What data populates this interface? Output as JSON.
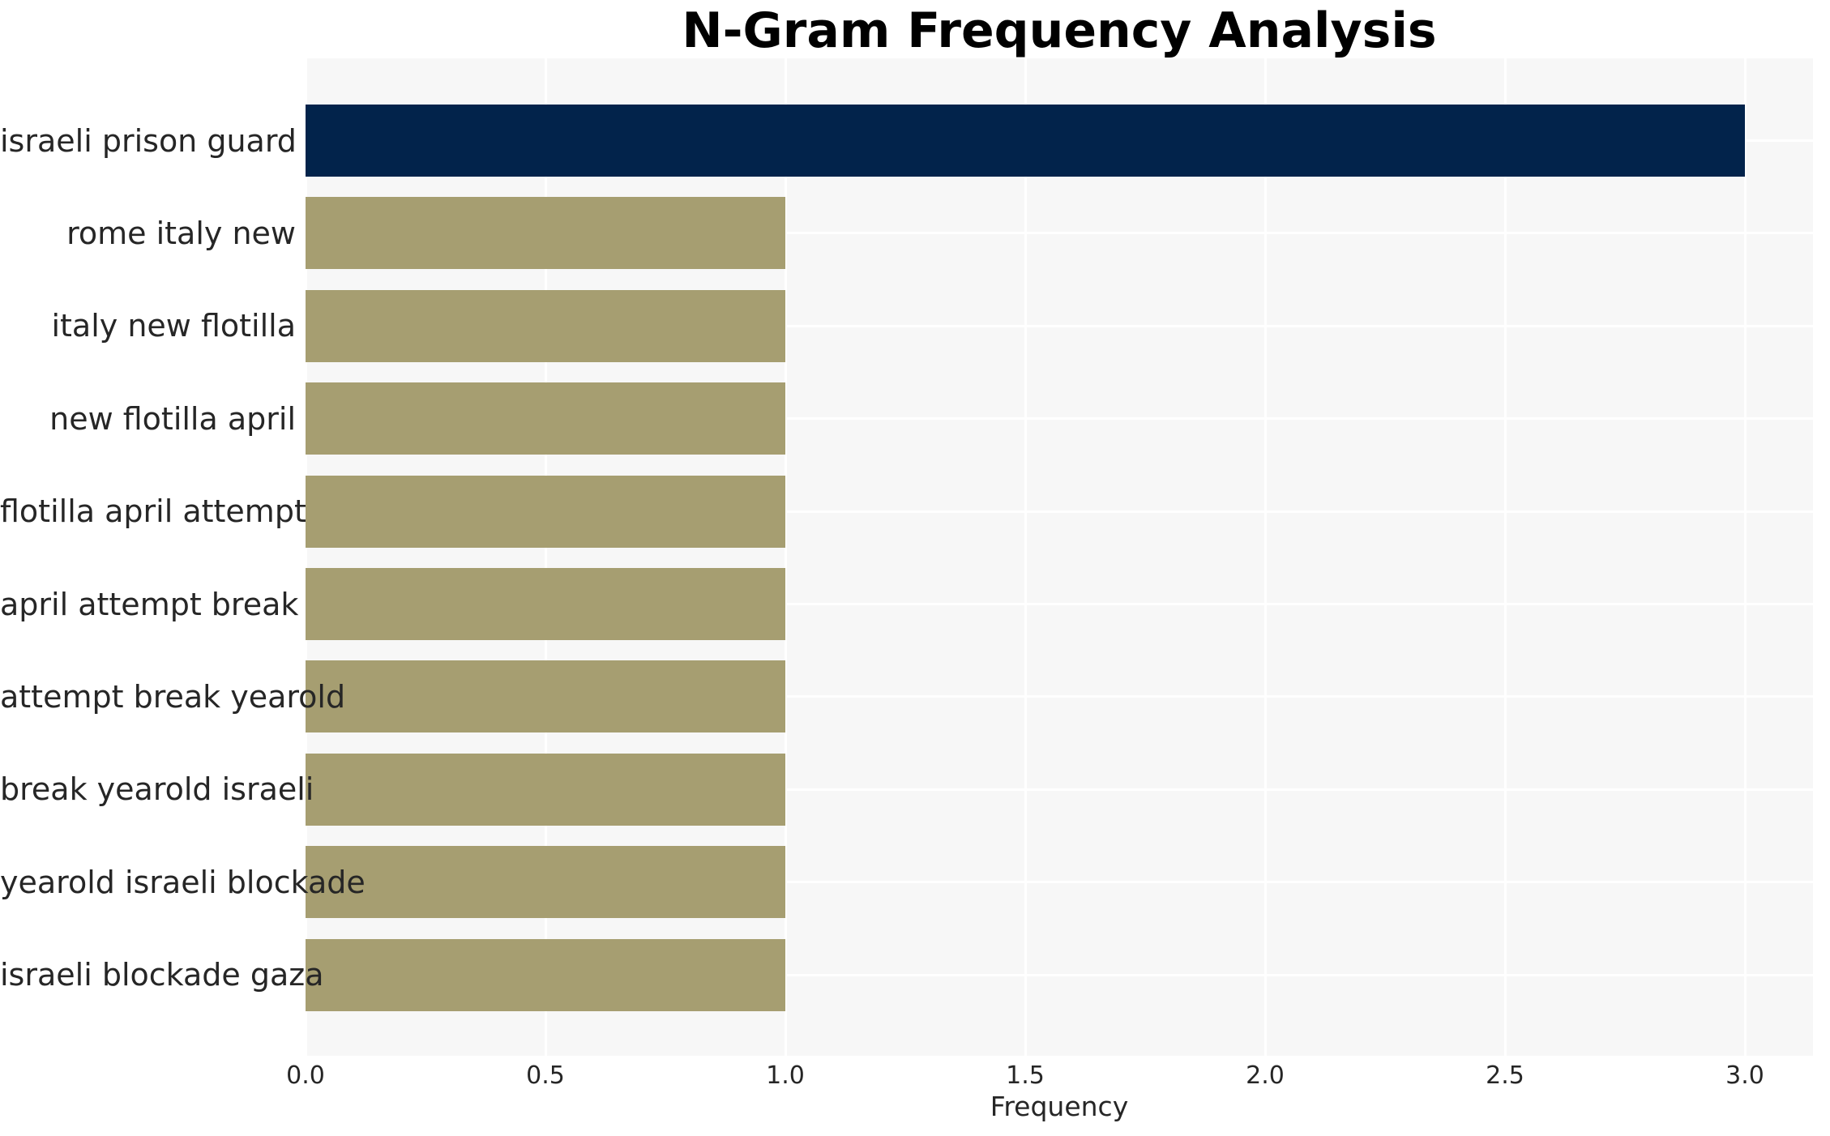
{
  "chart_data": {
    "type": "bar",
    "orientation": "horizontal",
    "title": "N-Gram Frequency Analysis",
    "xlabel": "Frequency",
    "ylabel": "",
    "categories": [
      "israeli prison guard",
      "rome italy new",
      "italy new flotilla",
      "new flotilla april",
      "flotilla april attempt",
      "april attempt break",
      "attempt break yearold",
      "break yearold israeli",
      "yearold israeli blockade",
      "israeli blockade gaza"
    ],
    "values": [
      3,
      1,
      1,
      1,
      1,
      1,
      1,
      1,
      1,
      1
    ],
    "bar_colors": [
      "#02234b",
      "#a69e71",
      "#a69e71",
      "#a69e71",
      "#a69e71",
      "#a69e71",
      "#a69e71",
      "#a69e71",
      "#a69e71",
      "#a69e71"
    ],
    "x_ticks": [
      "0.0",
      "0.5",
      "1.0",
      "1.5",
      "2.0",
      "2.5",
      "3.0"
    ],
    "x_tick_values": [
      0.0,
      0.5,
      1.0,
      1.5,
      2.0,
      2.5,
      3.0
    ],
    "xlim": [
      0,
      3.14
    ],
    "grid": true,
    "legend": false,
    "colors": {
      "highlight_bar": "#02234b",
      "default_bar": "#a69e71",
      "plot_background": "#f7f7f7",
      "gridline": "#ffffff",
      "tick_text": "#262626",
      "title_text": "#000000"
    }
  }
}
